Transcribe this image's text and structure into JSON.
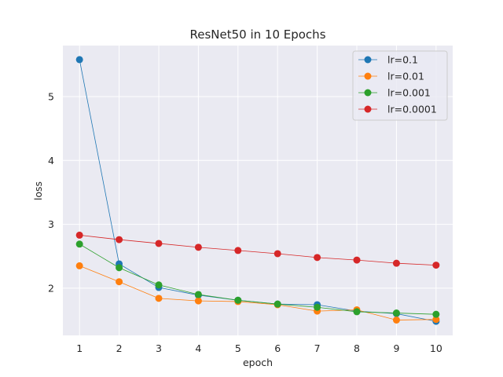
{
  "chart_data": {
    "type": "line",
    "title": "ResNet50 in 10 Epochs",
    "xlabel": "epoch",
    "ylabel": "loss",
    "x": [
      1,
      2,
      3,
      4,
      5,
      6,
      7,
      8,
      9,
      10
    ],
    "xlim": [
      0.58,
      10.42
    ],
    "ylim": [
      1.26,
      5.8
    ],
    "yticks": [
      2,
      3,
      4,
      5
    ],
    "grid": true,
    "legend_position": "top-right",
    "series": [
      {
        "name": "lr=0.1",
        "color": "#1f77b4",
        "values": [
          5.58,
          2.38,
          2.01,
          1.89,
          1.81,
          1.75,
          1.74,
          1.64,
          1.6,
          1.48
        ]
      },
      {
        "name": "lr=0.01",
        "color": "#ff7f0e",
        "values": [
          2.35,
          2.1,
          1.84,
          1.8,
          1.79,
          1.74,
          1.64,
          1.66,
          1.5,
          1.51
        ]
      },
      {
        "name": "lr=0.001",
        "color": "#2ca02c",
        "values": [
          2.69,
          2.32,
          2.05,
          1.9,
          1.81,
          1.75,
          1.7,
          1.63,
          1.61,
          1.59
        ]
      },
      {
        "name": "lr=0.0001",
        "color": "#d62728",
        "values": [
          2.83,
          2.76,
          2.7,
          2.64,
          2.59,
          2.54,
          2.48,
          2.44,
          2.39,
          2.36
        ]
      }
    ]
  }
}
